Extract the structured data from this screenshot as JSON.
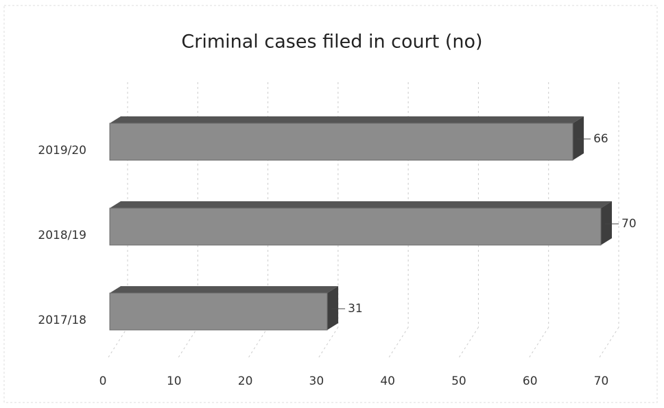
{
  "chart_data": {
    "type": "bar3d_horizontal",
    "title": "Criminal cases filed in court (no)",
    "categories": [
      "2017/18",
      "2018/19",
      "2019/20"
    ],
    "values": [
      31,
      70,
      66
    ],
    "color": "#8c8c8c",
    "xlim": [
      0,
      70
    ],
    "xticks": [
      0,
      10,
      20,
      30,
      40,
      50,
      60,
      70
    ],
    "grid": true
  }
}
